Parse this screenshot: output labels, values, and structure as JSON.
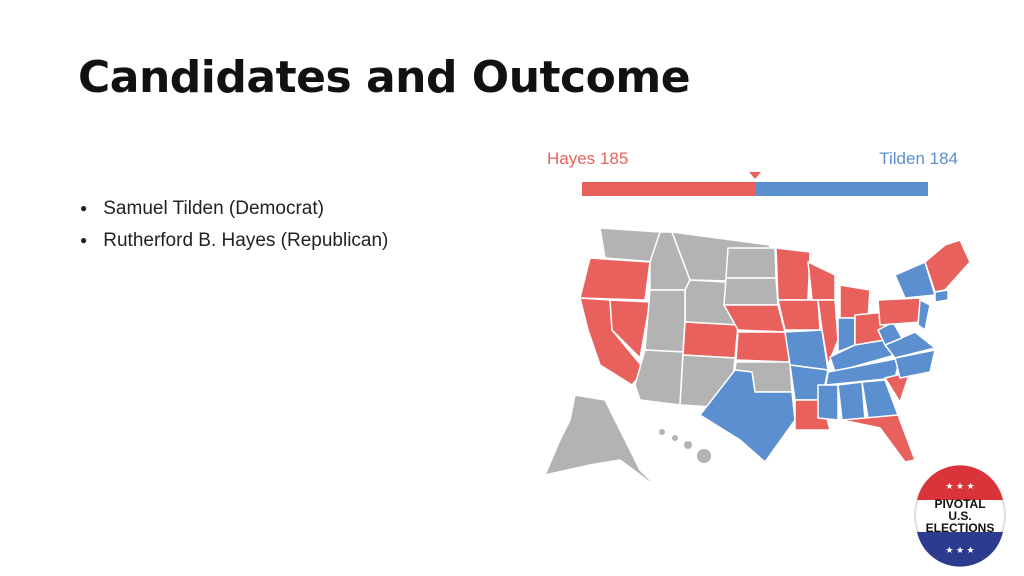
{
  "header": {
    "title": "Candidates and Outcome"
  },
  "bullets": [
    "Samuel Tilden (Democrat)",
    "Rutherford B. Hayes (Republican)"
  ],
  "electoral_bar": {
    "hayes": {
      "label": "Hayes 185",
      "votes": 185,
      "color": "#e8615d"
    },
    "tilden": {
      "label": "Tilden 184",
      "votes": 184,
      "color": "#5b8fcf"
    }
  },
  "logo": {
    "lines": [
      "PIVOTAL",
      "U.S.",
      "ELECTIONS"
    ]
  }
}
